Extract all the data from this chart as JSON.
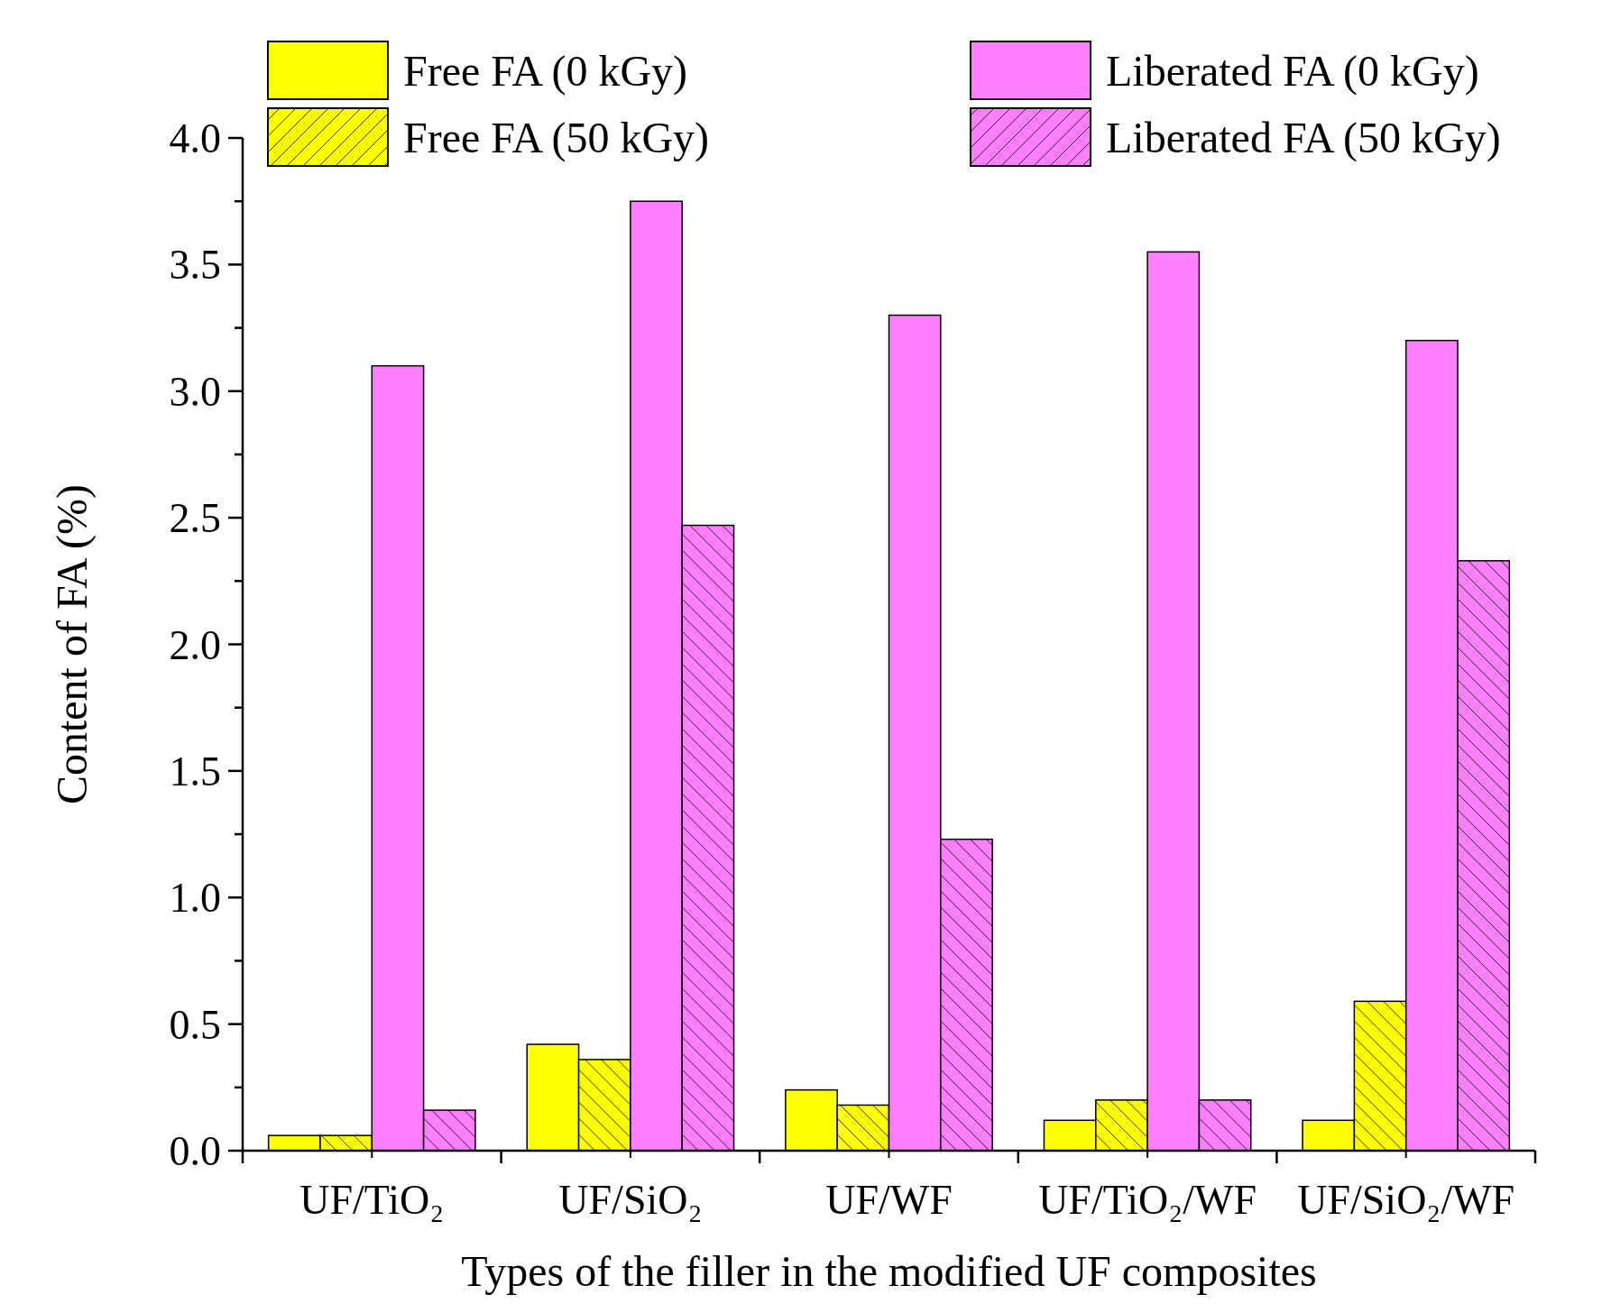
{
  "chart_data": {
    "type": "bar",
    "xlabel": "Types of the filler in the modified UF composites",
    "ylabel": "Content of FA (%)",
    "categories": [
      "UF/TiO₂",
      "UF/SiO₂",
      "UF/WF",
      "UF/TiO₂/WF",
      "UF/SiO₂/WF"
    ],
    "series": [
      {
        "name": "Free FA (0 kGy)",
        "color": "#ffff00",
        "values": [
          0.06,
          0.42,
          0.24,
          0.12,
          0.12
        ]
      },
      {
        "name": "Free FA (50 kGy)",
        "color": "#ffff00",
        "values": [
          0.06,
          0.36,
          0.18,
          0.2,
          0.59
        ]
      },
      {
        "name": "Liberated FA (0 kGy)",
        "color": "#ff80ff",
        "values": [
          3.1,
          3.75,
          3.3,
          3.55,
          3.2
        ]
      },
      {
        "name": "Liberated FA (50 kGy)",
        "color": "#ff80ff",
        "values": [
          0.16,
          2.47,
          1.23,
          0.2,
          2.33
        ]
      }
    ],
    "ylim": [
      0,
      4
    ],
    "yticks": [
      {
        "value": 0,
        "label": "0.0"
      },
      {
        "value": 0.25,
        "label": null
      },
      {
        "value": 0.5,
        "label": "0.5"
      },
      {
        "value": 0.75,
        "label": null
      },
      {
        "value": 1,
        "label": "1.0"
      },
      {
        "value": 1.25,
        "label": null
      },
      {
        "value": 1.5,
        "label": "1.5"
      },
      {
        "value": 1.75,
        "label": null
      },
      {
        "value": 2,
        "label": "2.0"
      },
      {
        "value": 2.25,
        "label": null
      },
      {
        "value": 2.5,
        "label": "2.5"
      },
      {
        "value": 2.75,
        "label": null
      },
      {
        "value": 3,
        "label": "3.0"
      },
      {
        "value": 3.25,
        "label": null
      },
      {
        "value": 3.5,
        "label": "3.5"
      },
      {
        "value": 3.75,
        "label": null
      },
      {
        "value": 4,
        "label": "4.0"
      }
    ],
    "legend": "top",
    "grid": false
  }
}
